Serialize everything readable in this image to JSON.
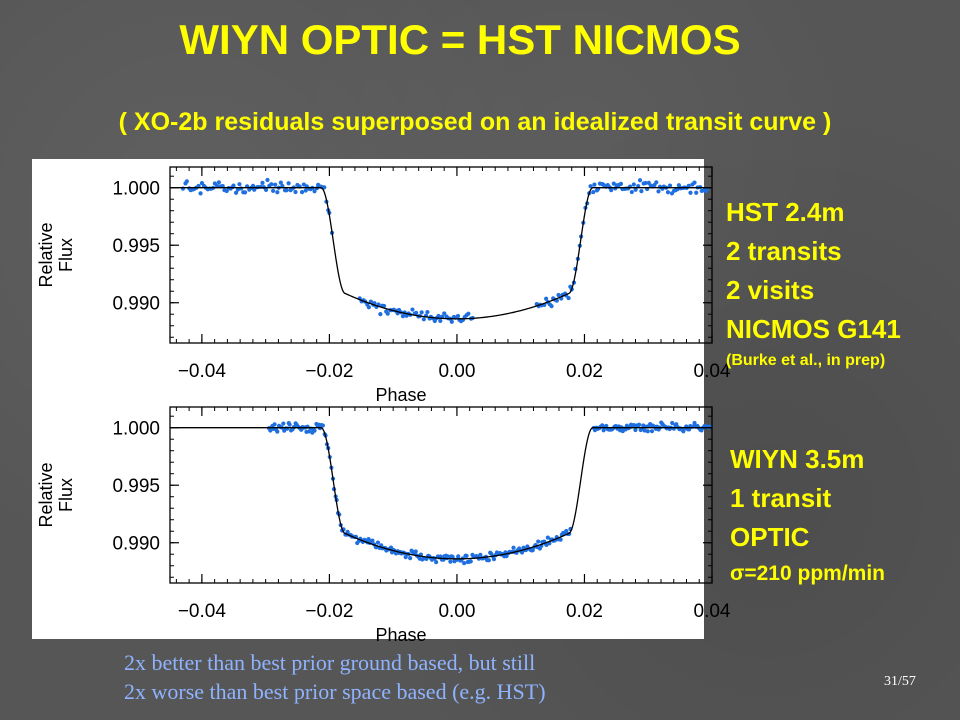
{
  "slide": {
    "title": "WIYN OPTIC = HST NICMOS",
    "subtitle": "( XO-2b residuals superposed on an idealized transit curve )",
    "page_number": "31/57",
    "footnote_line1": "2x better than best prior ground based, but still",
    "footnote_line2": "2x worse than best prior space based (e.g. HST)"
  },
  "hst_block": {
    "line1": "HST 2.4m",
    "line2": "2 transits",
    "line3": "2 visits",
    "line4": "NICMOS G141",
    "citation": "(Burke et al., in prep)"
  },
  "wiyn_block": {
    "line1": "WIYN 3.5m",
    "line2": "1 transit",
    "line3": "OPTIC",
    "line4": "σ=210 ppm/min"
  },
  "colors": {
    "title": "#ffff00",
    "footnote": "#8fb3ff",
    "points": "#1f6fe0",
    "model": "#000000"
  },
  "chart_data": [
    {
      "type": "scatter",
      "title": "",
      "xlabel": "Phase",
      "ylabel_line1": "Relative",
      "ylabel_line2": "Flux",
      "xlim": [
        -0.045,
        0.04
      ],
      "ylim": [
        0.9865,
        1.0018
      ],
      "x_ticks": [
        -0.04,
        -0.02,
        0.0,
        0.02,
        0.04
      ],
      "x_tick_labels": [
        "−0.04",
        "−0.02",
        "0.00",
        "0.02",
        "0.04"
      ],
      "y_ticks": [
        1.0,
        0.995,
        0.99
      ],
      "y_tick_labels": [
        "1.000",
        "0.995",
        "0.990"
      ],
      "model": {
        "name": "idealized transit curve",
        "depth": 0.0114,
        "ingress_start": -0.0213,
        "ingress_end": -0.0175,
        "egress_start": 0.0175,
        "egress_end": 0.0213,
        "limb_curvature": 0.0022
      },
      "series": [
        {
          "data_range": [
            -0.043,
            0.0395
          ],
          "scatter_sd": 0.00025,
          "gaps": [
            [
              -0.0195,
              -0.0155
            ],
            [
              0.0025,
              0.0125
            ]
          ],
          "n_points": 280,
          "seed": 7
        }
      ]
    },
    {
      "type": "scatter",
      "title": "",
      "xlabel": "Phase",
      "ylabel_line1": "Relative",
      "ylabel_line2": "Flux",
      "xlim": [
        -0.045,
        0.04
      ],
      "ylim": [
        0.9865,
        1.0018
      ],
      "x_ticks": [
        -0.04,
        -0.02,
        0.0,
        0.02,
        0.04
      ],
      "x_tick_labels": [
        "−0.04",
        "−0.02",
        "0.00",
        "0.02",
        "0.04"
      ],
      "y_ticks": [
        1.0,
        0.995,
        0.99
      ],
      "y_tick_labels": [
        "1.000",
        "0.995",
        "0.990"
      ],
      "model": {
        "name": "idealized transit curve",
        "depth": 0.0114,
        "ingress_start": -0.0213,
        "ingress_end": -0.0175,
        "egress_start": 0.0175,
        "egress_end": 0.0213,
        "limb_curvature": 0.0022
      },
      "series": [
        {
          "data_range": [
            -0.0295,
            0.0398
          ],
          "scatter_sd": 0.00018,
          "gaps": [
            [
              0.0178,
              0.0213
            ]
          ],
          "n_points": 320,
          "seed": 13
        }
      ]
    }
  ]
}
